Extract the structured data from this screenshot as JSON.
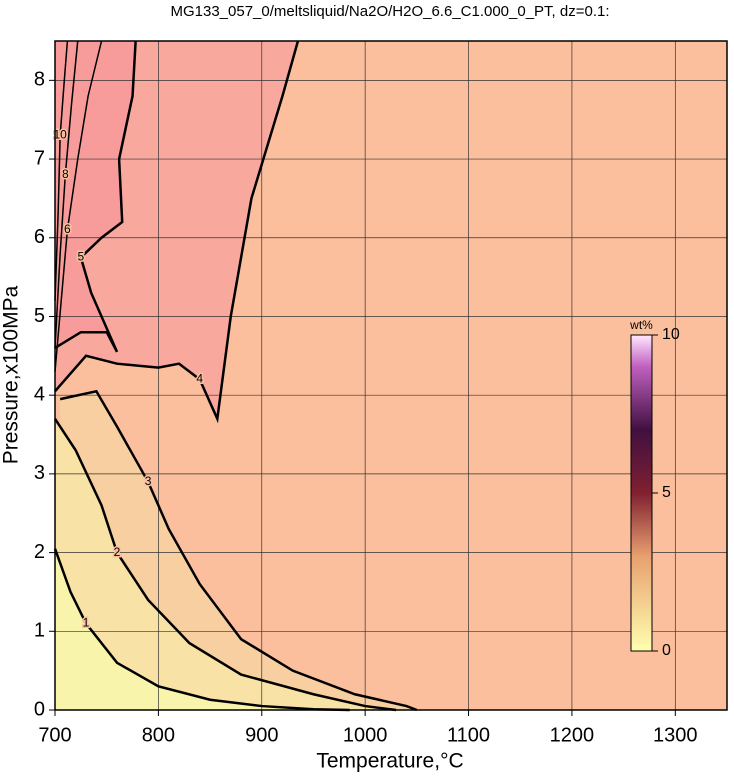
{
  "chart_data": {
    "type": "contour",
    "title": "MG133_057_0/meltsliquid/Na2O/H2O_6.6_C1.000_0_PT, dz=0.1:",
    "x_label": "Temperature,°C",
    "y_label": "Pressure,x100MPa",
    "xlim": [
      700,
      1350
    ],
    "ylim": [
      0,
      8.5
    ],
    "xticks": [
      700,
      800,
      900,
      1000,
      1100,
      1200,
      1300
    ],
    "yticks": [
      0,
      1,
      2,
      3,
      4,
      5,
      6,
      7,
      8
    ],
    "grid": true,
    "band_colors": [
      "#f8f4ac",
      "#f8e2a6",
      "#f7cfa0",
      "#fbbf9e",
      "#f9a89e",
      "#f79c9a"
    ],
    "contours": [
      {
        "level": 1,
        "x": [
          700,
          715,
          730,
          760,
          800,
          850,
          900,
          950,
          985
        ],
        "y": [
          2.05,
          1.5,
          1.1,
          0.6,
          0.3,
          0.13,
          0.05,
          0.01,
          0
        ]
      },
      {
        "level": 2,
        "x": [
          700,
          720,
          745,
          760,
          790,
          830,
          880,
          950,
          1000,
          1030
        ],
        "y": [
          3.7,
          3.3,
          2.6,
          2.0,
          1.4,
          0.85,
          0.45,
          0.2,
          0.05,
          0
        ]
      },
      {
        "level": 3,
        "x": [
          705,
          740,
          760,
          790,
          810,
          840,
          880,
          930,
          990,
          1040,
          1050
        ],
        "y": [
          3.95,
          4.05,
          3.6,
          2.9,
          2.3,
          1.6,
          0.9,
          0.5,
          0.2,
          0.05,
          0
        ]
      },
      {
        "level": 4,
        "x": [
          700,
          730,
          760,
          800,
          820,
          840,
          857,
          870,
          890,
          920,
          935
        ],
        "y": [
          4.05,
          4.5,
          4.4,
          4.35,
          4.4,
          4.2,
          3.7,
          5.0,
          6.5,
          7.8,
          8.5
        ]
      },
      {
        "level": 5,
        "x": [
          700,
          725,
          750,
          760,
          735,
          725,
          745,
          765,
          762,
          775,
          778
        ],
        "y": [
          4.6,
          4.8,
          4.8,
          4.55,
          5.3,
          5.75,
          6.0,
          6.2,
          7.0,
          7.8,
          8.5
        ]
      },
      {
        "level": 6,
        "x": [
          700,
          706,
          712,
          722,
          732,
          745
        ],
        "y": [
          4.3,
          5.2,
          6.1,
          7.0,
          7.8,
          8.5
        ]
      },
      {
        "level": 8,
        "x": [
          700,
          705,
          710,
          716,
          722
        ],
        "y": [
          4.6,
          5.8,
          6.8,
          7.7,
          8.5
        ]
      },
      {
        "level": 10,
        "x": [
          700,
          703,
          705,
          709,
          712
        ],
        "y": [
          5.2,
          6.3,
          7.3,
          8.0,
          8.5
        ]
      }
    ],
    "colorbar_label": "wt%",
    "colorbar_lim": [
      0,
      10
    ],
    "colorbar_ticks": [
      0,
      5,
      10
    ],
    "colormap": [
      [
        0,
        "#ffffb0"
      ],
      [
        3,
        "#e8a070"
      ],
      [
        5,
        "#802030"
      ],
      [
        7,
        "#401040"
      ],
      [
        9,
        "#c060c0"
      ],
      [
        10,
        "#ffe8ff"
      ]
    ]
  }
}
